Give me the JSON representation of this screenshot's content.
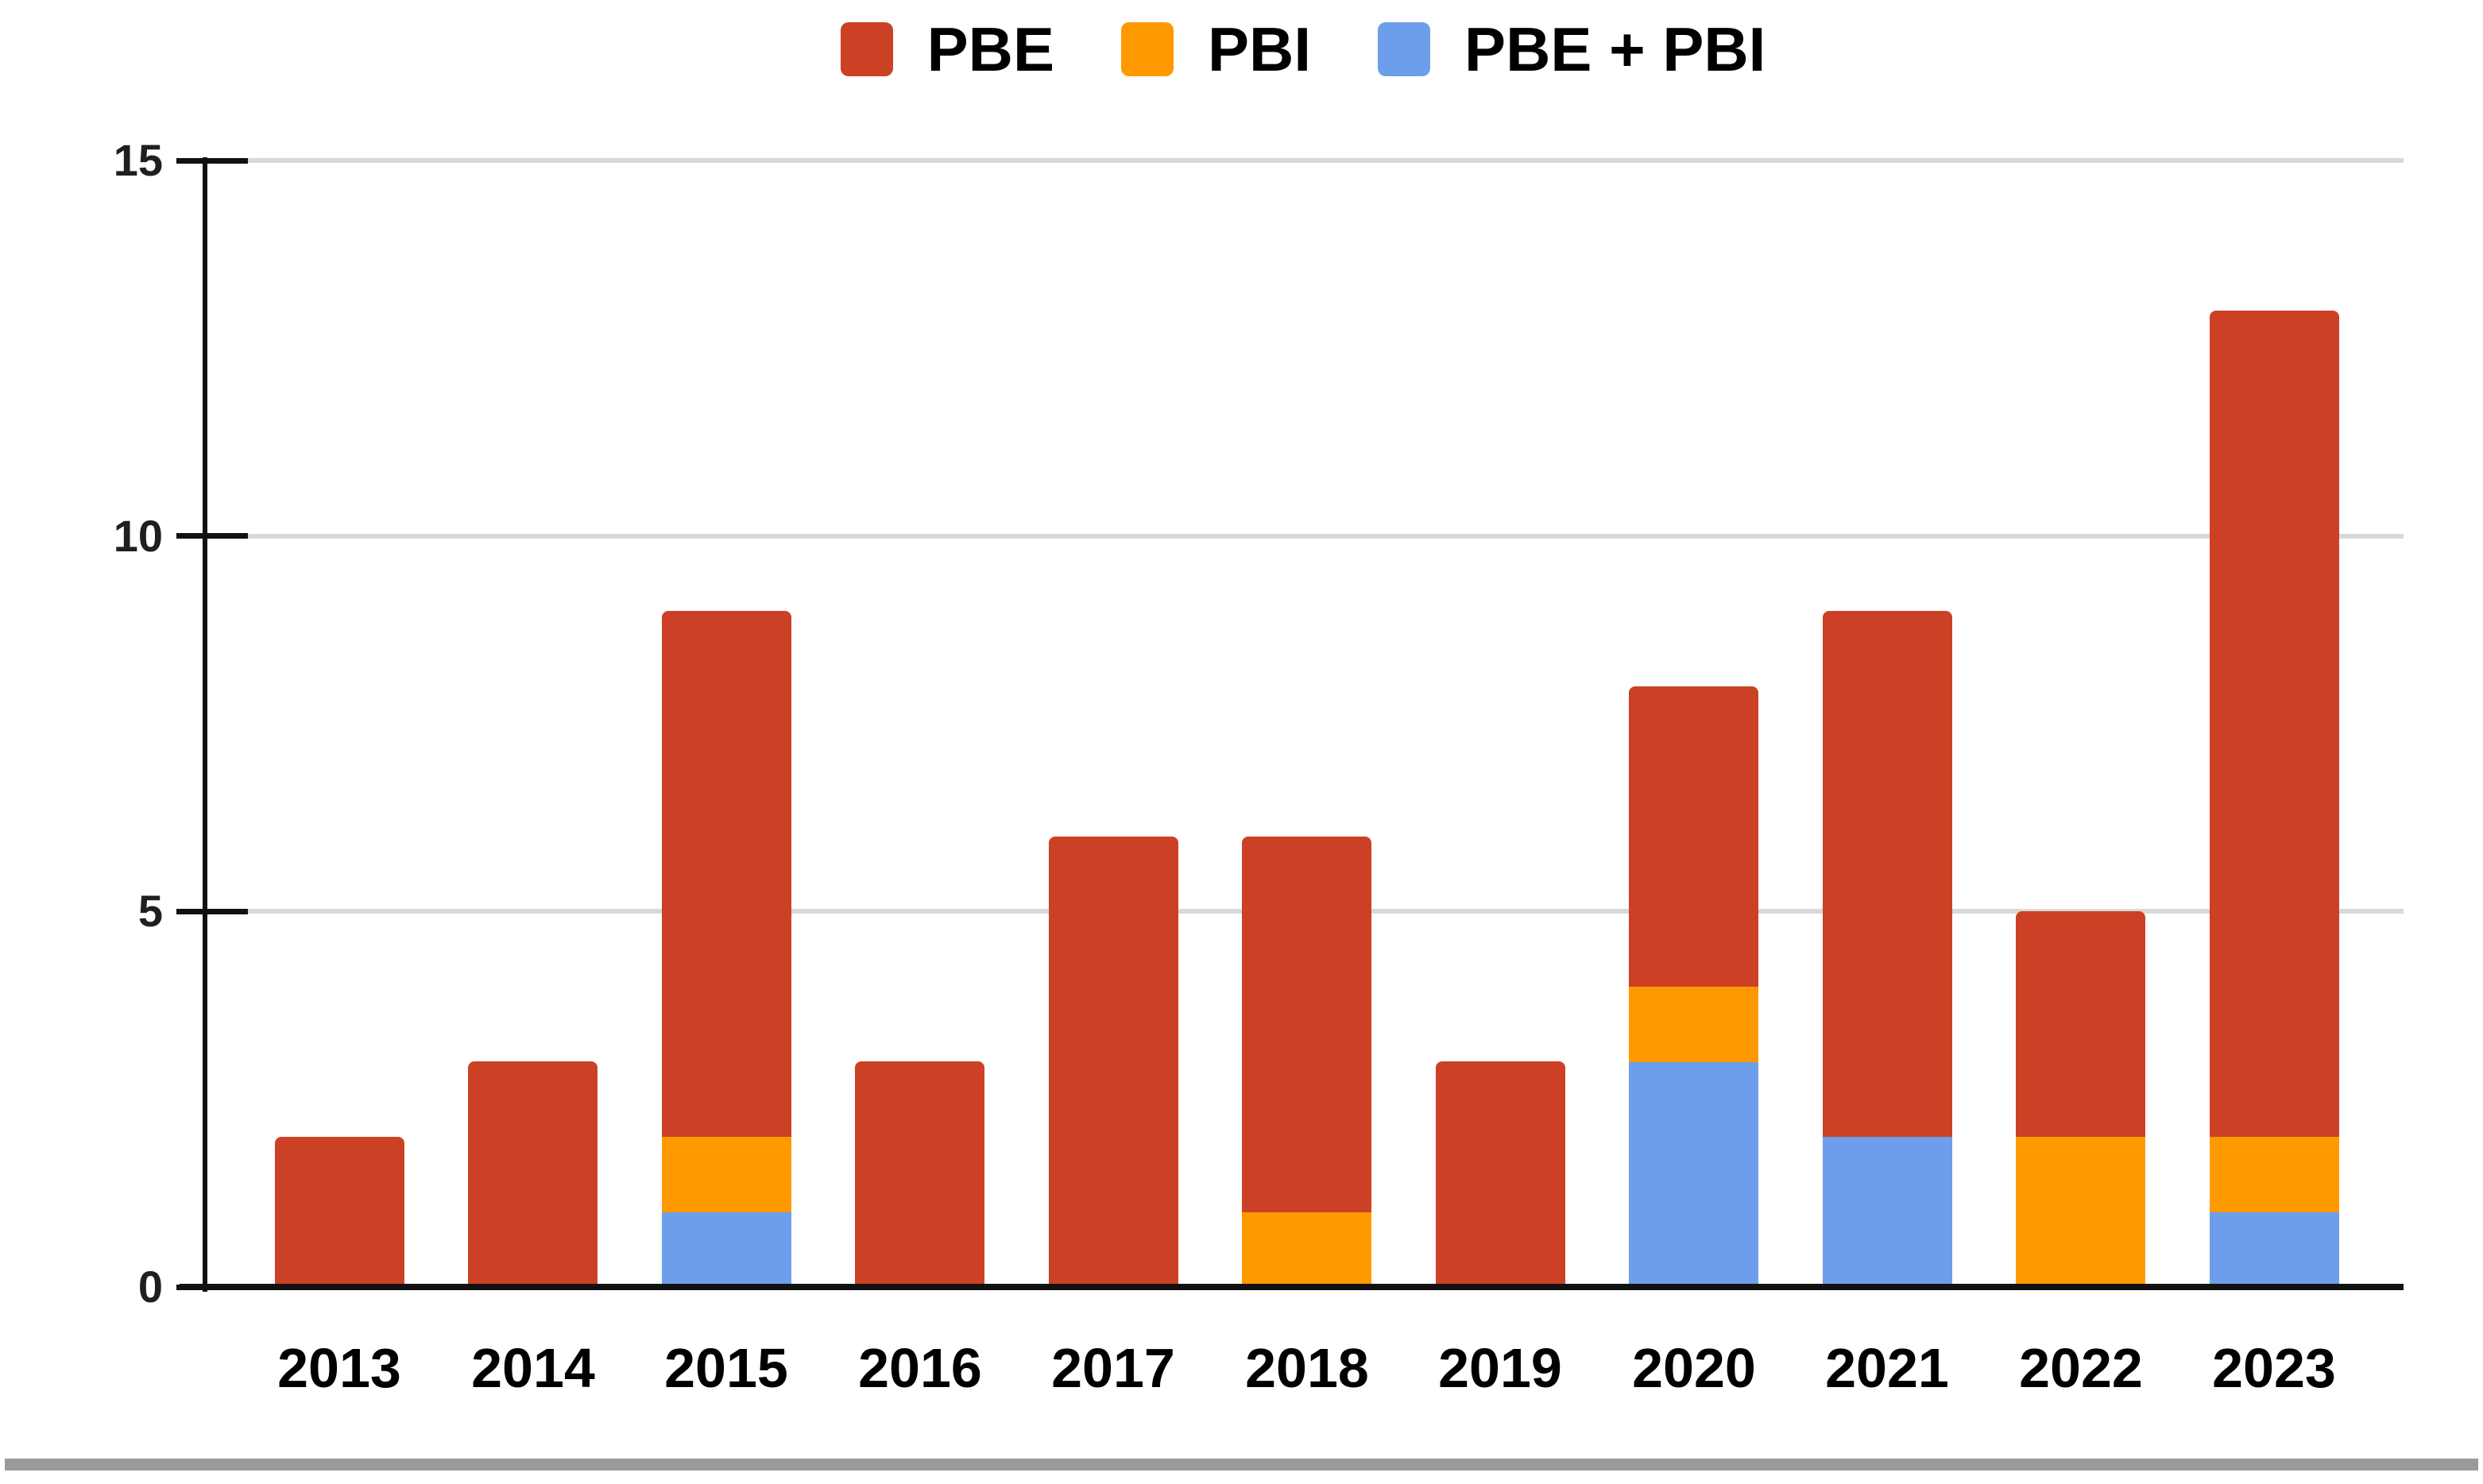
{
  "chart_data": {
    "type": "bar",
    "stacked": true,
    "title": "",
    "xlabel": "",
    "ylabel": "",
    "categories": [
      "2013",
      "2014",
      "2015",
      "2016",
      "2017",
      "2018",
      "2019",
      "2020",
      "2021",
      "2022",
      "2023"
    ],
    "series": [
      {
        "name": "PBE",
        "color": "#CC4125",
        "values": [
          2,
          3,
          7,
          3,
          6,
          5,
          3,
          4,
          7,
          3,
          11
        ]
      },
      {
        "name": "PBI",
        "color": "#FF9900",
        "values": [
          0,
          0,
          1,
          0,
          0,
          1,
          0,
          1,
          0,
          2,
          1
        ]
      },
      {
        "name": "PBE + PBI",
        "color": "#6D9EEB",
        "values": [
          0,
          0,
          1,
          0,
          0,
          0,
          0,
          3,
          2,
          0,
          1
        ]
      }
    ],
    "stack_order_bottom_to_top": [
      "PBE + PBI",
      "PBI",
      "PBE"
    ],
    "totals": [
      2,
      3,
      9,
      3,
      6,
      6,
      3,
      8,
      9,
      5,
      13
    ],
    "ylim": [
      0,
      15
    ],
    "y_ticks": [
      "0",
      "5",
      "10",
      "15"
    ],
    "grid": "horizontal",
    "legend_position": "top-center"
  },
  "colors": {
    "pbe_red": "#CC4125",
    "pbi_orange": "#FF9900",
    "pbe_pbi_blue": "#6D9EEB",
    "gridline": "#D9D9D9",
    "axis": "#111111",
    "text": "#000000",
    "y_tick_text": "#1f1f1f",
    "bottom_divider": "#9A9A9A",
    "background": "#FFFFFF"
  }
}
